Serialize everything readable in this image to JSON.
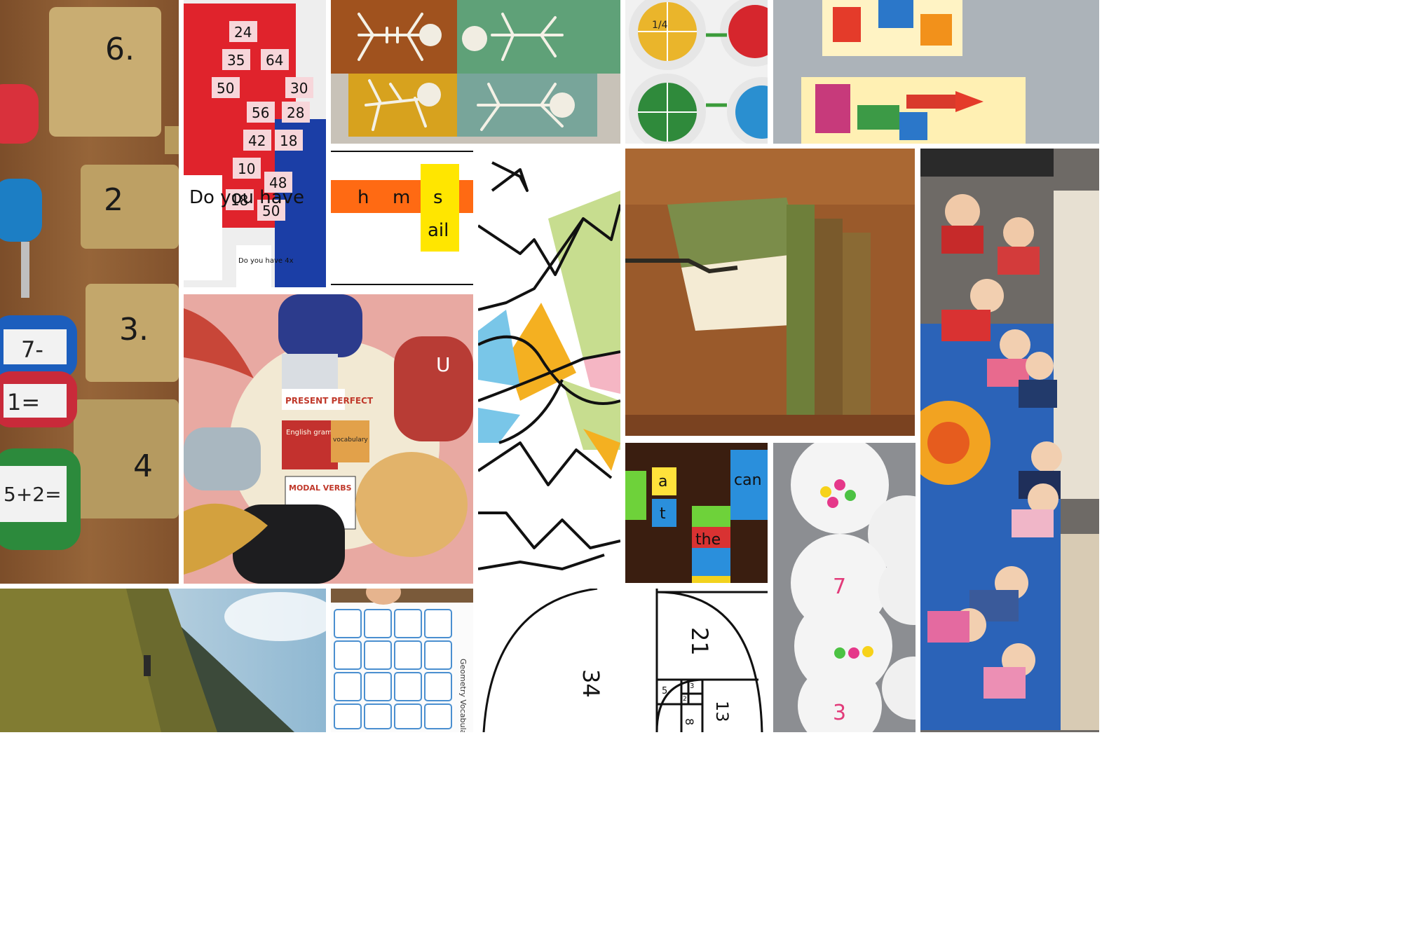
{
  "collage": {
    "locks_and_keys": {
      "lock_labels": [
        "6.",
        "2",
        "3.",
        "4"
      ],
      "keytag_labels": [
        "7-",
        "1=",
        "5+2="
      ]
    },
    "connect_four_game": {
      "numbers": [
        "24",
        "64",
        "35",
        "30",
        "50",
        "56",
        "28",
        "42",
        "18",
        "10",
        "48",
        "18",
        "50"
      ],
      "card_text": "Do you have",
      "small_card_text": "Do you have 4x"
    },
    "skeleton_art": {
      "panels": 4
    },
    "paper_plate_fractions": {
      "fraction_label": "1/4"
    },
    "tissue_paper_lanterns": {},
    "phonics_slider": {
      "letters": [
        "h",
        "m",
        "s"
      ],
      "rime": "ail"
    },
    "line_art_coloring": {},
    "books_painting": {},
    "english_study_illustration": {
      "sign_text": "PRESENT PERFECT",
      "book_title": "English grammar",
      "card_text": "vocabulary",
      "notebook_text": "MODAL VERBS",
      "cap_letter": "U"
    },
    "preschool_circle_time": {},
    "lego_sight_words": {
      "words": [
        "a",
        "can",
        "the"
      ],
      "letters": [
        "a",
        "t",
        "c",
        "a",
        "n",
        "t",
        "h",
        "e"
      ]
    },
    "paper_plate_counting": {
      "numbers": [
        "7",
        "3"
      ]
    },
    "mountain_hiker": {},
    "geometry_vocabulary_cards": {
      "title": "Geometry Vocabulary"
    },
    "fibonacci_spiral": {
      "numbers": [
        "34",
        "21",
        "13",
        "8",
        "5",
        "3",
        "2"
      ]
    }
  }
}
